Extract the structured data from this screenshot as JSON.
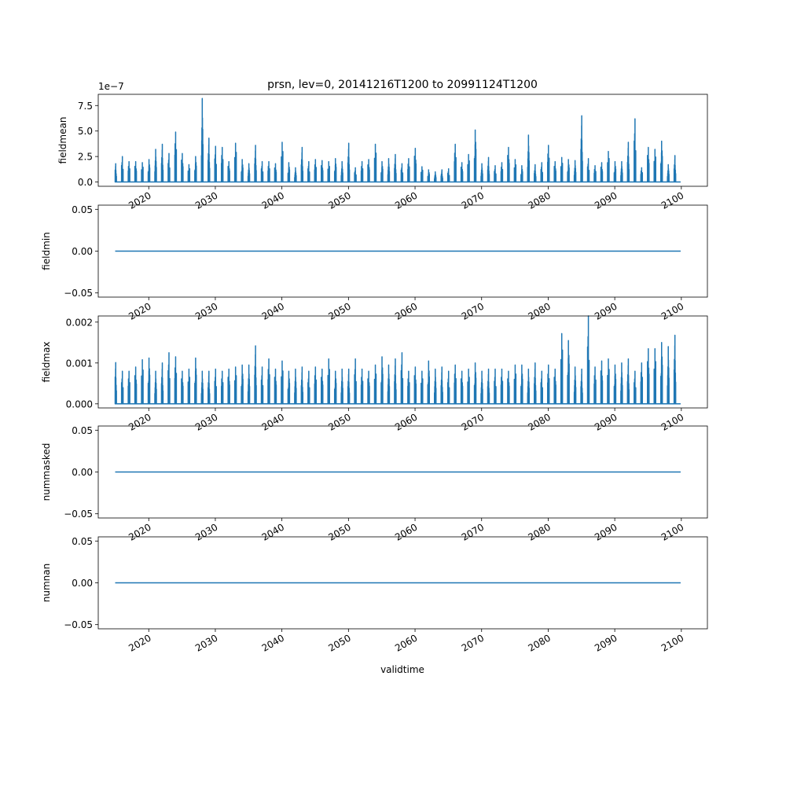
{
  "title": "prsn, lev=0, 20141216T1200 to 20991124T1200",
  "xlabel": "validtime",
  "x_tick_labels": [
    "2020",
    "2030",
    "2040",
    "2050",
    "2060",
    "2070",
    "2080",
    "2090",
    "2100"
  ],
  "colors": {
    "line": "#1f77b4",
    "axes": "#000000",
    "background": "#ffffff"
  },
  "chart_data": [
    {
      "type": "line",
      "name": "fieldmean",
      "ylabel": "fieldmean",
      "offset_text": "1e−7",
      "yticks": [
        0.0,
        2.5,
        5.0,
        7.5
      ],
      "ytick_labels": [
        "0.0",
        "2.5",
        "5.0",
        "7.5"
      ],
      "ylim": [
        -0.42,
        8.6
      ],
      "y_units_scale": 1e-07,
      "xlim": [
        "2012-06-01",
        "2103-12-01"
      ],
      "x_start": "2014-12-16",
      "x_end": "2099-11-24",
      "baseline": 0.0,
      "seasonal_peaks": [
        {
          "date": "2015-01-15",
          "value": 1.8
        },
        {
          "date": "2016-01-15",
          "value": 2.5
        },
        {
          "date": "2017-01-15",
          "value": 2.0
        },
        {
          "date": "2018-01-15",
          "value": 2.0
        },
        {
          "date": "2019-01-15",
          "value": 1.9
        },
        {
          "date": "2020-01-15",
          "value": 2.2
        },
        {
          "date": "2021-01-15",
          "value": 3.2
        },
        {
          "date": "2022-01-15",
          "value": 3.7
        },
        {
          "date": "2023-01-15",
          "value": 2.8
        },
        {
          "date": "2024-01-15",
          "value": 4.9
        },
        {
          "date": "2025-01-15",
          "value": 2.8
        },
        {
          "date": "2026-01-15",
          "value": 1.7
        },
        {
          "date": "2027-01-15",
          "value": 2.5
        },
        {
          "date": "2028-01-15",
          "value": 8.2
        },
        {
          "date": "2029-01-15",
          "value": 4.3
        },
        {
          "date": "2030-01-15",
          "value": 3.5
        },
        {
          "date": "2031-01-15",
          "value": 3.4
        },
        {
          "date": "2032-01-15",
          "value": 2.0
        },
        {
          "date": "2033-01-15",
          "value": 3.8
        },
        {
          "date": "2034-01-15",
          "value": 2.2
        },
        {
          "date": "2035-01-15",
          "value": 1.8
        },
        {
          "date": "2036-01-15",
          "value": 3.6
        },
        {
          "date": "2037-01-15",
          "value": 2.0
        },
        {
          "date": "2038-01-15",
          "value": 2.0
        },
        {
          "date": "2039-01-15",
          "value": 1.8
        },
        {
          "date": "2040-01-15",
          "value": 3.9
        },
        {
          "date": "2041-01-15",
          "value": 1.9
        },
        {
          "date": "2042-01-15",
          "value": 1.4
        },
        {
          "date": "2043-01-15",
          "value": 3.4
        },
        {
          "date": "2044-01-15",
          "value": 2.0
        },
        {
          "date": "2045-01-15",
          "value": 2.2
        },
        {
          "date": "2046-01-15",
          "value": 2.1
        },
        {
          "date": "2047-01-15",
          "value": 2.0
        },
        {
          "date": "2048-01-15",
          "value": 2.3
        },
        {
          "date": "2049-01-15",
          "value": 2.0
        },
        {
          "date": "2050-01-15",
          "value": 3.8
        },
        {
          "date": "2051-01-15",
          "value": 1.4
        },
        {
          "date": "2052-01-15",
          "value": 2.0
        },
        {
          "date": "2053-01-15",
          "value": 2.2
        },
        {
          "date": "2054-01-15",
          "value": 3.7
        },
        {
          "date": "2055-01-15",
          "value": 2.0
        },
        {
          "date": "2056-01-15",
          "value": 2.3
        },
        {
          "date": "2057-01-15",
          "value": 2.7
        },
        {
          "date": "2058-01-15",
          "value": 1.8
        },
        {
          "date": "2059-01-15",
          "value": 2.3
        },
        {
          "date": "2060-01-15",
          "value": 3.3
        },
        {
          "date": "2061-01-15",
          "value": 1.5
        },
        {
          "date": "2062-01-15",
          "value": 1.2
        },
        {
          "date": "2063-01-15",
          "value": 1.0
        },
        {
          "date": "2064-01-15",
          "value": 1.2
        },
        {
          "date": "2065-01-15",
          "value": 1.3
        },
        {
          "date": "2066-01-15",
          "value": 3.7
        },
        {
          "date": "2067-01-15",
          "value": 1.9
        },
        {
          "date": "2068-01-15",
          "value": 2.7
        },
        {
          "date": "2069-01-15",
          "value": 5.1
        },
        {
          "date": "2070-01-15",
          "value": 1.8
        },
        {
          "date": "2071-01-15",
          "value": 2.4
        },
        {
          "date": "2072-01-15",
          "value": 1.6
        },
        {
          "date": "2073-01-15",
          "value": 1.9
        },
        {
          "date": "2074-01-15",
          "value": 3.4
        },
        {
          "date": "2075-01-15",
          "value": 2.2
        },
        {
          "date": "2076-01-15",
          "value": 1.6
        },
        {
          "date": "2077-01-15",
          "value": 4.6
        },
        {
          "date": "2078-01-15",
          "value": 1.7
        },
        {
          "date": "2079-01-15",
          "value": 1.9
        },
        {
          "date": "2080-01-15",
          "value": 3.6
        },
        {
          "date": "2081-01-15",
          "value": 2.0
        },
        {
          "date": "2082-01-15",
          "value": 2.4
        },
        {
          "date": "2083-01-15",
          "value": 2.2
        },
        {
          "date": "2084-01-15",
          "value": 2.1
        },
        {
          "date": "2085-01-15",
          "value": 6.5
        },
        {
          "date": "2086-01-15",
          "value": 2.3
        },
        {
          "date": "2087-01-15",
          "value": 1.6
        },
        {
          "date": "2088-01-15",
          "value": 1.9
        },
        {
          "date": "2089-01-15",
          "value": 3.0
        },
        {
          "date": "2090-01-15",
          "value": 2.0
        },
        {
          "date": "2091-01-15",
          "value": 2.0
        },
        {
          "date": "2092-01-15",
          "value": 3.9
        },
        {
          "date": "2093-01-15",
          "value": 6.2
        },
        {
          "date": "2094-01-15",
          "value": 1.4
        },
        {
          "date": "2095-01-15",
          "value": 3.4
        },
        {
          "date": "2096-01-15",
          "value": 3.2
        },
        {
          "date": "2097-01-15",
          "value": 4.0
        },
        {
          "date": "2098-01-15",
          "value": 1.7
        },
        {
          "date": "2099-01-15",
          "value": 2.6
        }
      ]
    },
    {
      "type": "line",
      "name": "fieldmin",
      "ylabel": "fieldmin",
      "yticks": [
        -0.05,
        0.0,
        0.05
      ],
      "ytick_labels": [
        "−0.05",
        "0.00",
        "0.05"
      ],
      "ylim": [
        -0.055,
        0.055
      ],
      "xlim": [
        "2012-06-01",
        "2103-12-01"
      ],
      "x_start": "2014-12-16",
      "x_end": "2099-11-24",
      "constant_value": 0.0
    },
    {
      "type": "line",
      "name": "fieldmax",
      "ylabel": "fieldmax",
      "yticks": [
        0.0,
        0.001,
        0.002
      ],
      "ytick_labels": [
        "0.000",
        "0.001",
        "0.002"
      ],
      "ylim": [
        -0.0001,
        0.00215
      ],
      "xlim": [
        "2012-06-01",
        "2103-12-01"
      ],
      "x_start": "2014-12-16",
      "x_end": "2099-11-24",
      "baseline": 0.0,
      "seasonal_peaks": [
        {
          "date": "2015-01-15",
          "value": 0.00101
        },
        {
          "date": "2016-01-15",
          "value": 0.0008
        },
        {
          "date": "2017-01-15",
          "value": 0.0008
        },
        {
          "date": "2018-01-15",
          "value": 0.0009
        },
        {
          "date": "2019-01-15",
          "value": 0.00108
        },
        {
          "date": "2020-01-15",
          "value": 0.00112
        },
        {
          "date": "2021-01-15",
          "value": 0.0008
        },
        {
          "date": "2022-01-15",
          "value": 0.001
        },
        {
          "date": "2023-01-15",
          "value": 0.00125
        },
        {
          "date": "2024-01-15",
          "value": 0.00115
        },
        {
          "date": "2025-01-15",
          "value": 0.0008
        },
        {
          "date": "2026-01-15",
          "value": 0.00085
        },
        {
          "date": "2027-01-15",
          "value": 0.00112
        },
        {
          "date": "2028-01-15",
          "value": 0.0008
        },
        {
          "date": "2029-01-15",
          "value": 0.0008
        },
        {
          "date": "2030-01-15",
          "value": 0.00085
        },
        {
          "date": "2031-01-15",
          "value": 0.0008
        },
        {
          "date": "2032-01-15",
          "value": 0.00085
        },
        {
          "date": "2033-01-15",
          "value": 0.0009
        },
        {
          "date": "2034-01-15",
          "value": 0.00095
        },
        {
          "date": "2035-01-15",
          "value": 0.00095
        },
        {
          "date": "2036-01-15",
          "value": 0.00142
        },
        {
          "date": "2037-01-15",
          "value": 0.0009
        },
        {
          "date": "2038-01-15",
          "value": 0.0011
        },
        {
          "date": "2039-01-15",
          "value": 0.00085
        },
        {
          "date": "2040-01-15",
          "value": 0.00105
        },
        {
          "date": "2041-01-15",
          "value": 0.0008
        },
        {
          "date": "2042-01-15",
          "value": 0.00085
        },
        {
          "date": "2043-01-15",
          "value": 0.0009
        },
        {
          "date": "2044-01-15",
          "value": 0.0008
        },
        {
          "date": "2045-01-15",
          "value": 0.0009
        },
        {
          "date": "2046-01-15",
          "value": 0.00085
        },
        {
          "date": "2047-01-15",
          "value": 0.0011
        },
        {
          "date": "2048-01-15",
          "value": 0.0008
        },
        {
          "date": "2049-01-15",
          "value": 0.00085
        },
        {
          "date": "2050-01-15",
          "value": 0.00085
        },
        {
          "date": "2051-01-15",
          "value": 0.0011
        },
        {
          "date": "2052-01-15",
          "value": 0.00085
        },
        {
          "date": "2053-01-15",
          "value": 0.0008
        },
        {
          "date": "2054-01-15",
          "value": 0.00095
        },
        {
          "date": "2055-01-15",
          "value": 0.00115
        },
        {
          "date": "2056-01-15",
          "value": 0.00095
        },
        {
          "date": "2057-01-15",
          "value": 0.0011
        },
        {
          "date": "2058-01-15",
          "value": 0.00125
        },
        {
          "date": "2059-01-15",
          "value": 0.0008
        },
        {
          "date": "2060-01-15",
          "value": 0.0009
        },
        {
          "date": "2061-01-15",
          "value": 0.0008
        },
        {
          "date": "2062-01-15",
          "value": 0.00105
        },
        {
          "date": "2063-01-15",
          "value": 0.00085
        },
        {
          "date": "2064-01-15",
          "value": 0.0009
        },
        {
          "date": "2065-01-15",
          "value": 0.0008
        },
        {
          "date": "2066-01-15",
          "value": 0.00095
        },
        {
          "date": "2067-01-15",
          "value": 0.0008
        },
        {
          "date": "2068-01-15",
          "value": 0.00085
        },
        {
          "date": "2069-01-15",
          "value": 0.001
        },
        {
          "date": "2070-01-15",
          "value": 0.0008
        },
        {
          "date": "2071-01-15",
          "value": 0.00085
        },
        {
          "date": "2072-01-15",
          "value": 0.00085
        },
        {
          "date": "2073-01-15",
          "value": 0.00085
        },
        {
          "date": "2074-01-15",
          "value": 0.0008
        },
        {
          "date": "2075-01-15",
          "value": 0.00095
        },
        {
          "date": "2076-01-15",
          "value": 0.00095
        },
        {
          "date": "2077-01-15",
          "value": 0.00085
        },
        {
          "date": "2078-01-15",
          "value": 0.001
        },
        {
          "date": "2079-01-15",
          "value": 0.0008
        },
        {
          "date": "2080-01-15",
          "value": 0.00095
        },
        {
          "date": "2081-01-15",
          "value": 0.00085
        },
        {
          "date": "2082-01-15",
          "value": 0.00172
        },
        {
          "date": "2083-01-15",
          "value": 0.00155
        },
        {
          "date": "2084-01-15",
          "value": 0.0009
        },
        {
          "date": "2085-01-15",
          "value": 0.00085
        },
        {
          "date": "2086-01-15",
          "value": 0.00215
        },
        {
          "date": "2087-01-15",
          "value": 0.0009
        },
        {
          "date": "2088-01-15",
          "value": 0.00105
        },
        {
          "date": "2089-01-15",
          "value": 0.0011
        },
        {
          "date": "2090-01-15",
          "value": 0.00095
        },
        {
          "date": "2091-01-15",
          "value": 0.001
        },
        {
          "date": "2092-01-15",
          "value": 0.0011
        },
        {
          "date": "2093-01-15",
          "value": 0.0008
        },
        {
          "date": "2094-01-15",
          "value": 0.001
        },
        {
          "date": "2095-01-15",
          "value": 0.00135
        },
        {
          "date": "2096-01-15",
          "value": 0.00135
        },
        {
          "date": "2097-01-15",
          "value": 0.0015
        },
        {
          "date": "2098-01-15",
          "value": 0.0014
        },
        {
          "date": "2099-01-15",
          "value": 0.00168
        }
      ]
    },
    {
      "type": "line",
      "name": "nummasked",
      "ylabel": "nummasked",
      "yticks": [
        -0.05,
        0.0,
        0.05
      ],
      "ytick_labels": [
        "−0.05",
        "0.00",
        "0.05"
      ],
      "ylim": [
        -0.055,
        0.055
      ],
      "xlim": [
        "2012-06-01",
        "2103-12-01"
      ],
      "x_start": "2014-12-16",
      "x_end": "2099-11-24",
      "constant_value": 0.0
    },
    {
      "type": "line",
      "name": "numnan",
      "ylabel": "numnan",
      "yticks": [
        -0.05,
        0.0,
        0.05
      ],
      "ytick_labels": [
        "−0.05",
        "0.00",
        "0.05"
      ],
      "ylim": [
        -0.055,
        0.055
      ],
      "xlim": [
        "2012-06-01",
        "2103-12-01"
      ],
      "x_start": "2014-12-16",
      "x_end": "2099-11-24",
      "constant_value": 0.0
    }
  ]
}
